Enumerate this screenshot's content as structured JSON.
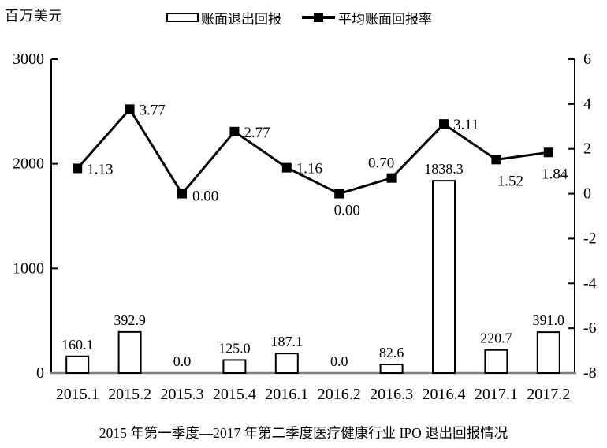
{
  "chart_data": {
    "type": "combo: bar + line, dual y-axes",
    "title": "2015 年第一季度—2017 年第二季度医疗健康行业 IPO 退出回报情况",
    "ylabel_left_unit": "百万美元",
    "grid": "off",
    "legend_position": "top-center",
    "categories": [
      "2015.1",
      "2015.2",
      "2015.3",
      "2015.4",
      "2016.1",
      "2016.2",
      "2016.3",
      "2016.4",
      "2017.1",
      "2017.2"
    ],
    "series": [
      {
        "name": "账面退出回报",
        "type": "bar",
        "axis": "left",
        "style": "white fill, black outline",
        "values": [
          160.1,
          392.9,
          0.0,
          125.0,
          187.1,
          0.0,
          82.6,
          1838.3,
          220.7,
          391.0
        ],
        "labels": [
          "160.1",
          "392.9",
          "0.0",
          "125.0",
          "187.1",
          "0.0",
          "82.6",
          "1838.3",
          "220.7",
          "391.0"
        ]
      },
      {
        "name": "平均账面回报率",
        "type": "line",
        "axis": "right",
        "style": "black line with filled square markers",
        "values": [
          1.13,
          3.77,
          0.0,
          2.77,
          1.16,
          0.0,
          0.7,
          3.11,
          1.52,
          1.84
        ],
        "labels": [
          "1.13",
          "3.77",
          "0.00",
          "2.77",
          "1.16",
          "0.00",
          "0.70",
          "3.11",
          "1.52",
          "1.84"
        ]
      }
    ],
    "left_axis": {
      "min": 0,
      "max": 3000,
      "ticks": [
        0,
        1000,
        2000,
        3000
      ]
    },
    "right_axis": {
      "min": -8,
      "max": 6,
      "ticks": [
        6,
        4,
        2,
        0,
        -2,
        -4,
        -6,
        -8
      ]
    },
    "colors": {
      "series": "#000000",
      "baseline": "#7f7f7f",
      "background": "#ffffff"
    },
    "point_label_offsets": [
      [
        12,
        7,
        "start"
      ],
      [
        12,
        7,
        "start"
      ],
      [
        13,
        9,
        "start"
      ],
      [
        12,
        7,
        "start"
      ],
      [
        12,
        7,
        "start"
      ],
      [
        10,
        27,
        "middle"
      ],
      [
        -13,
        -13,
        "middle"
      ],
      [
        12,
        7,
        "start"
      ],
      [
        18,
        33,
        "middle"
      ],
      [
        8,
        33,
        "middle"
      ]
    ]
  }
}
